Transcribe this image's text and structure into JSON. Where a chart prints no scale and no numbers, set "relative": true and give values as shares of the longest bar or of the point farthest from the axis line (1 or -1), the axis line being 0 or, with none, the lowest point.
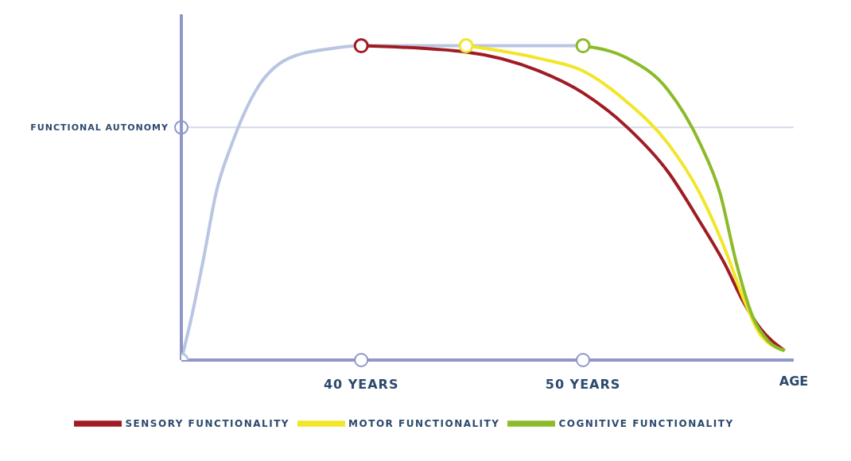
{
  "chart_data": {
    "type": "line",
    "relative": true,
    "xlabel": "AGE",
    "xlim": [
      31.89,
      59.5
    ],
    "xticks": [
      {
        "value": 40,
        "label": "40 YEARS"
      },
      {
        "value": 50,
        "label": "50 YEARS"
      }
    ],
    "legend": "bottom",
    "line_style": "solid",
    "ref_lines": [
      {
        "axis": "y",
        "value": 0.74,
        "label": "FUNCTIONAL AUTONOMY",
        "color": "#d5dbe8"
      }
    ],
    "series": [
      {
        "color": "#b9c5e2",
        "x": [
          31.89,
          32.36,
          32.91,
          33.45,
          34.18,
          35.27,
          36.73,
          38.55,
          40,
          44.73,
          50
        ],
        "values": [
          0,
          0.14,
          0.33,
          0.53,
          0.69,
          0.86,
          0.96,
          0.99,
          1,
          1,
          1
        ]
      },
      {
        "name": "SENSORY FUNCTIONALITY",
        "color": "#a01c24",
        "x": [
          40,
          44.73,
          48,
          50,
          52,
          53.82,
          55.27,
          56.36,
          57.27,
          58,
          59.09
        ],
        "values": [
          1,
          0.98,
          0.92,
          0.85,
          0.74,
          0.6,
          0.44,
          0.31,
          0.18,
          0.1,
          0.03
        ]
      },
      {
        "name": "MOTOR FUNCTIONALITY",
        "color": "#f2e629",
        "x": [
          44.73,
          48,
          50,
          52,
          53.82,
          55.27,
          56.36,
          57.27,
          58,
          59.09
        ],
        "values": [
          1,
          0.96,
          0.92,
          0.82,
          0.69,
          0.53,
          0.36,
          0.19,
          0.08,
          0.03
        ]
      },
      {
        "name": "COGNITIVE FUNCTIONALITY",
        "color": "#8cbb2a",
        "x": [
          50,
          52,
          53.82,
          55.27,
          56.18,
          56.91,
          57.64,
          58.36,
          59.09
        ],
        "values": [
          1,
          0.96,
          0.86,
          0.69,
          0.53,
          0.31,
          0.14,
          0.06,
          0.03
        ]
      }
    ]
  }
}
